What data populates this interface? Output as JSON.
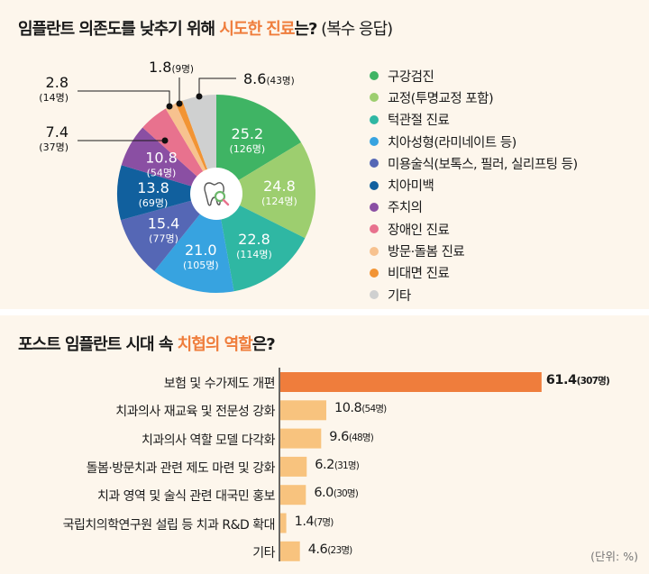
{
  "section1": {
    "title_prefix": "임플란트 의존도를 낮추기 위해 ",
    "title_highlight": "시도한 진료",
    "title_suffix": "는?",
    "title_sub": " (복수 응답)"
  },
  "section2": {
    "title_prefix": "포스트 임플란트 시대 속 ",
    "title_highlight": "치협의 역할",
    "title_suffix": "은?",
    "unit": "(단위: %)"
  },
  "colors": {
    "accent": "#ef7d3c",
    "bar_primary": "#ef7d3c",
    "bar_secondary": "#f8c37e",
    "background": "#fdf6ec"
  },
  "chart_data": [
    {
      "type": "pie",
      "title": "임플란트 의존도를 낮추기 위해 시도한 진료는? (복수 응답)",
      "unit": "%",
      "center_icon": "tooth-magnifier-icon",
      "slices": [
        {
          "label": "구강검진",
          "value": 25.2,
          "count": "126명",
          "color": "#3fb464",
          "label_display": "inside"
        },
        {
          "label": "교정(투명교정 포함)",
          "value": 24.8,
          "count": "124명",
          "color": "#9dce6f",
          "label_display": "inside"
        },
        {
          "label": "턱관절 진료",
          "value": 22.8,
          "count": "114명",
          "color": "#2fb7a3",
          "label_display": "inside"
        },
        {
          "label": "치아성형(라미네이트 등)",
          "value": 21.0,
          "count": "105명",
          "color": "#37a3e0",
          "label_display": "inside"
        },
        {
          "label": "미용술식(보톡스, 필러, 실리프팅 등)",
          "value": 15.4,
          "count": "77명",
          "color": "#5567b5",
          "label_display": "inside"
        },
        {
          "label": "치아미백",
          "value": 13.8,
          "count": "69명",
          "color": "#11609e",
          "label_display": "inside"
        },
        {
          "label": "주치의",
          "value": 10.8,
          "count": "54명",
          "color": "#8a4fa3",
          "label_display": "inside"
        },
        {
          "label": "장애인 진료",
          "value": 7.4,
          "count": "37명",
          "color": "#e8728e",
          "label_display": "callout"
        },
        {
          "label": "방문·돌봄 진료",
          "value": 2.8,
          "count": "14명",
          "color": "#f7c28f",
          "label_display": "callout"
        },
        {
          "label": "비대면 진료",
          "value": 1.8,
          "count": "9명",
          "color": "#f29434",
          "label_display": "callout"
        },
        {
          "label": "기타",
          "value": 8.6,
          "count": "43명",
          "color": "#cfd0d0",
          "label_display": "callout"
        }
      ],
      "legend_position": "right"
    },
    {
      "type": "bar",
      "orientation": "horizontal",
      "title": "포스트 임플란트 시대 속 치협의 역할은?",
      "unit": "(단위: %)",
      "categories": [
        "보험 및 수가제도 개편",
        "치과의사 재교육 및 전문성 강화",
        "치과의사 역할 모델 다각화",
        "돌봄·방문치과 관련 제도 마련 및 강화",
        "치과 영역 및 술식 관련 대국민 홍보",
        "국립치의학연구원 설립 등 치과 R&D 확대",
        "기타"
      ],
      "values": [
        61.4,
        10.8,
        9.6,
        6.2,
        6.0,
        1.4,
        4.6
      ],
      "counts": [
        "307명",
        "54명",
        "48명",
        "31명",
        "30명",
        "7명",
        "23명"
      ],
      "highlight_index": 0,
      "grid": false
    }
  ]
}
